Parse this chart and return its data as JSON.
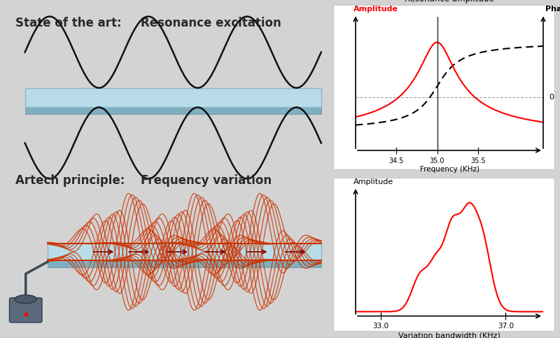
{
  "bg_color": "#d3d3d3",
  "panel_color": "#ffffff",
  "title1": "State of the art:",
  "title2": "Resonance excitation",
  "title3": "Artech principle:",
  "title4": "Frequency variation",
  "text_color": "#2a2a2a",
  "bar_top_color": "#add8e6",
  "bar_edge_color": "#88bbcc",
  "bar_side_color": "#6699aa",
  "resonance_label": "Resonance amplitude",
  "amp_label_red": "Amplitude",
  "phase_label": "Phase",
  "freq_label": "Frequency (KHz)",
  "zero_label": "0",
  "amp_label2": "Amplitude",
  "bw_label": "Variation bandwidth (KHz)",
  "orange_color": "#cc3300",
  "wave_black": "#111111"
}
